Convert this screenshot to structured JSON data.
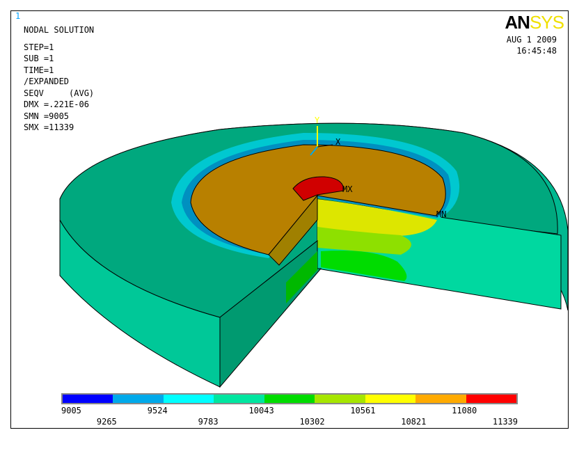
{
  "window_number": "1",
  "header": {
    "title": "NODAL SOLUTION",
    "lines": [
      "STEP=1",
      "SUB =1",
      "TIME=1",
      "/EXPANDED",
      "SEQV     (AVG)",
      "DMX =.221E-06",
      "SMN =9005",
      "SMX =11339"
    ]
  },
  "logo": {
    "an": "AN",
    "sys": "SYS"
  },
  "date": "AUG  1 2009",
  "time": "16:45:48",
  "triad": {
    "y_label": "Y",
    "x_label": "X"
  },
  "markers": {
    "max": "MX",
    "min": "MN"
  },
  "legend": {
    "colors": [
      "#0000ff",
      "#00a9ea",
      "#00ffff",
      "#00e6a0",
      "#00dc00",
      "#a6e600",
      "#ffff00",
      "#ffaa00",
      "#ff0000"
    ],
    "values": [
      "9005",
      "9265",
      "9524",
      "9783",
      "10043",
      "10302",
      "10561",
      "10821",
      "11080",
      "11339"
    ]
  }
}
